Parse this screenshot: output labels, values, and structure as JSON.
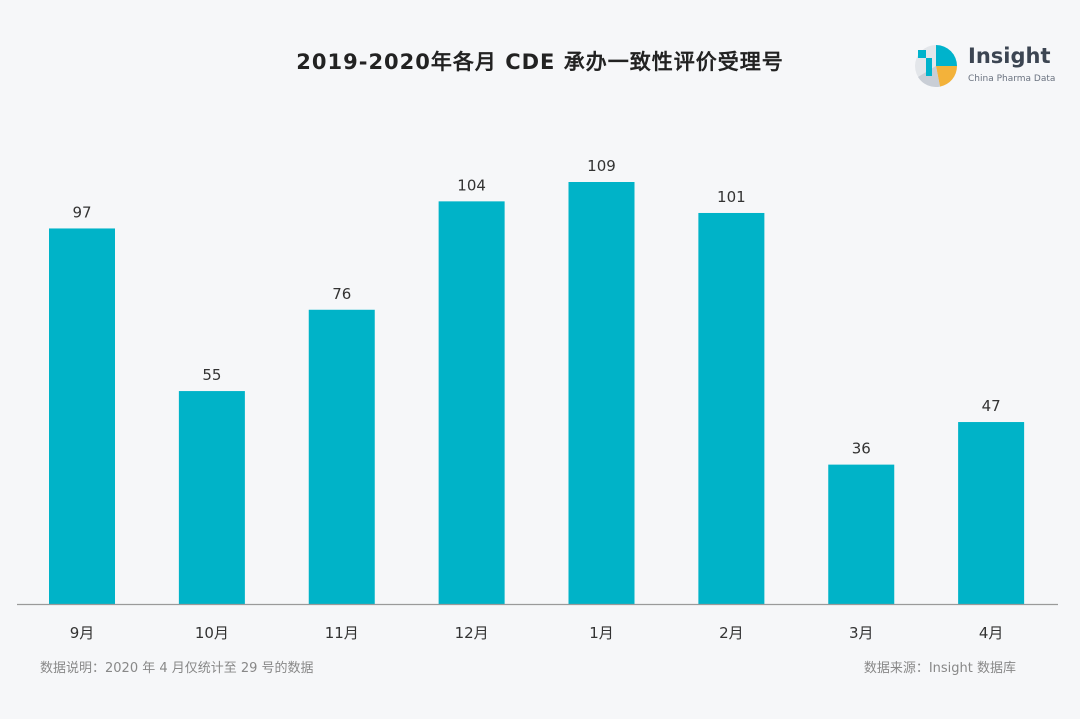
{
  "title": "2019-2020年各月 CDE 承办一致性评价受理号",
  "brand": {
    "name": "Insight",
    "subtitle": "China Pharma Data",
    "colors": [
      "#00b3cc",
      "#f3b23a",
      "#c9ced6",
      "#3c4552"
    ]
  },
  "chart_data": {
    "type": "bar",
    "title": "2019-2020年各月 CDE 承办一致性评价受理号",
    "categories": [
      "9月",
      "10月",
      "11月",
      "12月",
      "1月",
      "2月",
      "3月",
      "4月"
    ],
    "values": [
      97,
      55,
      76,
      104,
      109,
      101,
      36,
      47
    ],
    "xlabel": "",
    "ylabel": "",
    "ylim": [
      0,
      109
    ],
    "bar_color": "#00b3c8",
    "axis_color": "#9a9a9a",
    "label_color": "#333333",
    "grid": false,
    "data_labels": true
  },
  "footnote_left": "数据说明：2020 年 4 月仅统计至 29 号的数据",
  "footnote_right": "数据来源：Insight 数据库"
}
